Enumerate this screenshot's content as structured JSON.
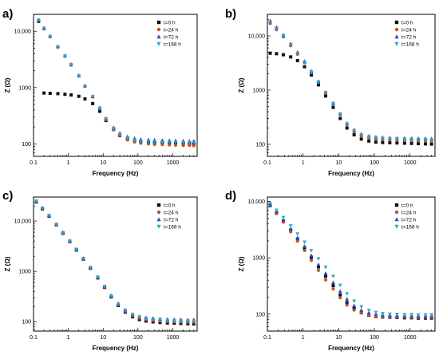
{
  "figure": {
    "panels": [
      "a)",
      "b)",
      "c)",
      "d)"
    ]
  },
  "colors": {
    "t0": "#111111",
    "t24": "#b8542a",
    "t72": "#3344cc",
    "t168": "#2aa9c7",
    "axis": "#000000"
  },
  "chart_data": [
    {
      "panel_label": "a)",
      "type": "scatter",
      "xlabel": "Frequency (Hz)",
      "ylabel": "Z (Ω)",
      "xscale": "log",
      "yscale": "log",
      "xlim": [
        0.1,
        5000
      ],
      "ylim": [
        60,
        20000
      ],
      "x_ticks": [
        "0.1",
        "1",
        "10",
        "100",
        "1000"
      ],
      "y_ticks": [
        "100",
        "1000",
        "10,000"
      ],
      "legend_position": "top-right",
      "x": [
        0.14,
        0.2,
        0.3,
        0.5,
        0.8,
        1.2,
        2,
        3,
        5,
        8,
        12,
        20,
        30,
        50,
        80,
        120,
        200,
        300,
        500,
        800,
        1200,
        2000,
        3000,
        4000
      ],
      "series": [
        {
          "name": "t=0 h",
          "marker": "square",
          "values": [
            15000,
            800,
            790,
            780,
            760,
            740,
            700,
            630,
            520,
            380,
            260,
            180,
            140,
            120,
            112,
            108,
            106,
            105,
            104,
            103,
            102,
            101,
            100,
            100
          ]
        },
        {
          "name": "t=24 h",
          "marker": "circle",
          "values": [
            15500,
            11000,
            8000,
            5200,
            3600,
            2500,
            1600,
            1050,
            680,
            420,
            270,
            180,
            140,
            118,
            108,
            103,
            100,
            98,
            97,
            96,
            95,
            94,
            94,
            93
          ]
        },
        {
          "name": "t=72 h",
          "marker": "triangle-up",
          "values": [
            16000,
            11500,
            8200,
            5400,
            3700,
            2600,
            1650,
            1080,
            700,
            440,
            285,
            195,
            155,
            135,
            125,
            120,
            118,
            117,
            116,
            115,
            114,
            113,
            112,
            112
          ]
        },
        {
          "name": "t=168 h",
          "marker": "triangle-down",
          "values": [
            15800,
            11300,
            8100,
            5300,
            3650,
            2550,
            1620,
            1060,
            690,
            430,
            278,
            188,
            148,
            127,
            117,
            112,
            110,
            109,
            108,
            107,
            106,
            105,
            105,
            104
          ]
        }
      ]
    },
    {
      "panel_label": "b)",
      "type": "scatter",
      "xlabel": "Frequency (Hz)",
      "ylabel": "Z (Ω)",
      "xscale": "log",
      "yscale": "log",
      "xlim": [
        0.1,
        5000
      ],
      "ylim": [
        60,
        25000
      ],
      "x_ticks": [
        "0.1",
        "1",
        "10",
        "100",
        "1000"
      ],
      "y_ticks": [
        "100",
        "1000",
        "10,000"
      ],
      "legend_position": "top-right",
      "x": [
        0.12,
        0.18,
        0.28,
        0.45,
        0.7,
        1.1,
        1.7,
        2.7,
        4.3,
        7,
        11,
        17,
        27,
        43,
        70,
        110,
        170,
        270,
        430,
        700,
        1100,
        1700,
        2700,
        4000
      ],
      "series": [
        {
          "name": "t=0 h",
          "marker": "square",
          "values": [
            4800,
            4700,
            4500,
            4100,
            3500,
            2700,
            1900,
            1250,
            780,
            480,
            300,
            200,
            150,
            125,
            115,
            110,
            108,
            107,
            106,
            105,
            104,
            103,
            102,
            101
          ]
        },
        {
          "name": "t=24 h",
          "marker": "circle",
          "values": [
            17000,
            13000,
            9600,
            6600,
            4600,
            3200,
            2100,
            1380,
            880,
            550,
            350,
            230,
            170,
            142,
            130,
            125,
            122,
            120,
            119,
            118,
            117,
            116,
            116,
            115
          ]
        },
        {
          "name": "t=72 h",
          "marker": "triangle-up",
          "values": [
            19000,
            14500,
            10500,
            7200,
            5000,
            3400,
            2250,
            1450,
            920,
            580,
            370,
            245,
            185,
            155,
            143,
            137,
            134,
            132,
            131,
            130,
            129,
            128,
            128,
            127
          ]
        },
        {
          "name": "t=168 h",
          "marker": "triangle-down",
          "values": [
            18000,
            13800,
            10000,
            6900,
            4800,
            3300,
            2180,
            1420,
            900,
            565,
            360,
            238,
            178,
            149,
            137,
            131,
            128,
            126,
            125,
            124,
            123,
            122,
            122,
            121
          ]
        }
      ]
    },
    {
      "panel_label": "c)",
      "type": "scatter",
      "xlabel": "Frequency (Hz)",
      "ylabel": "Z (Ω)",
      "xscale": "log",
      "yscale": "log",
      "xlim": [
        0.1,
        5000
      ],
      "ylim": [
        65,
        30000
      ],
      "x_ticks": [
        "0.1",
        "1",
        "10",
        "100",
        "1000"
      ],
      "y_ticks": [
        "100",
        "1000",
        "10,000"
      ],
      "legend_position": "top-right",
      "x": [
        0.12,
        0.18,
        0.28,
        0.45,
        0.7,
        1.1,
        1.7,
        2.7,
        4.3,
        7,
        11,
        17,
        27,
        43,
        70,
        110,
        170,
        270,
        430,
        700,
        1100,
        1700,
        2700,
        4000
      ],
      "series": [
        {
          "name": "t=0 h",
          "marker": "square",
          "values": [
            24000,
            17500,
            12500,
            8400,
            5700,
            3900,
            2650,
            1750,
            1150,
            740,
            480,
            310,
            210,
            155,
            125,
            110,
            103,
            99,
            96,
            94,
            93,
            92,
            91,
            90
          ]
        },
        {
          "name": "t=24 h",
          "marker": "circle",
          "values": [
            24500,
            17800,
            12700,
            8500,
            5800,
            3950,
            2700,
            1780,
            1170,
            755,
            490,
            320,
            218,
            162,
            132,
            118,
            111,
            106,
            103,
            101,
            100,
            99,
            98,
            98
          ]
        },
        {
          "name": "t=72 h",
          "marker": "triangle-up",
          "values": [
            25000,
            18200,
            13000,
            8700,
            5950,
            4050,
            2760,
            1820,
            1200,
            775,
            505,
            332,
            228,
            172,
            142,
            128,
            121,
            117,
            114,
            112,
            111,
            110,
            109,
            109
          ]
        },
        {
          "name": "t=168 h",
          "marker": "triangle-down",
          "values": [
            24800,
            18000,
            12850,
            8600,
            5870,
            4000,
            2730,
            1800,
            1185,
            765,
            497,
            326,
            223,
            167,
            137,
            123,
            116,
            111,
            108,
            106,
            105,
            104,
            103,
            103
          ]
        }
      ]
    },
    {
      "panel_label": "d)",
      "type": "scatter",
      "xlabel": "Frequency (Hz)",
      "ylabel": "Z (Ω)",
      "xscale": "log",
      "yscale": "log",
      "xlim": [
        0.1,
        5000
      ],
      "ylim": [
        50,
        12000
      ],
      "x_ticks": [
        "0.1",
        "1",
        "10",
        "100",
        "1000"
      ],
      "y_ticks": [
        "100",
        "1000",
        "10,000"
      ],
      "legend_position": "top-right",
      "x": [
        0.12,
        0.18,
        0.28,
        0.45,
        0.7,
        1.1,
        1.7,
        2.7,
        4.3,
        7,
        11,
        17,
        27,
        43,
        70,
        110,
        170,
        270,
        430,
        700,
        1100,
        1700,
        2700,
        4000
      ],
      "series": [
        {
          "name": "t=0 h",
          "marker": "square",
          "values": [
            8500,
            6300,
            4500,
            3100,
            2150,
            1500,
            1020,
            690,
            470,
            320,
            220,
            160,
            125,
            106,
            96,
            91,
            89,
            88,
            87,
            86,
            86,
            85,
            85,
            85
          ]
        },
        {
          "name": "t=24 h",
          "marker": "circle",
          "values": [
            8300,
            6100,
            4300,
            2900,
            1980,
            1350,
            900,
            600,
            405,
            280,
            195,
            145,
            118,
            104,
            97,
            93,
            91,
            90,
            89,
            89,
            88,
            88,
            88,
            88
          ]
        },
        {
          "name": "t=72 h",
          "marker": "triangle-up",
          "values": [
            8700,
            6500,
            4700,
            3250,
            2280,
            1600,
            1100,
            760,
            530,
            365,
            255,
            185,
            142,
            118,
            106,
            100,
            97,
            96,
            95,
            95,
            94,
            94,
            94,
            94
          ]
        },
        {
          "name": "t=168 h",
          "marker": "triangle-down",
          "values": [
            9200,
            7000,
            5200,
            3700,
            2650,
            1900,
            1350,
            960,
            680,
            470,
            325,
            230,
            170,
            135,
            117,
            107,
            102,
            100,
            99,
            98,
            98,
            97,
            97,
            97
          ]
        }
      ]
    }
  ]
}
